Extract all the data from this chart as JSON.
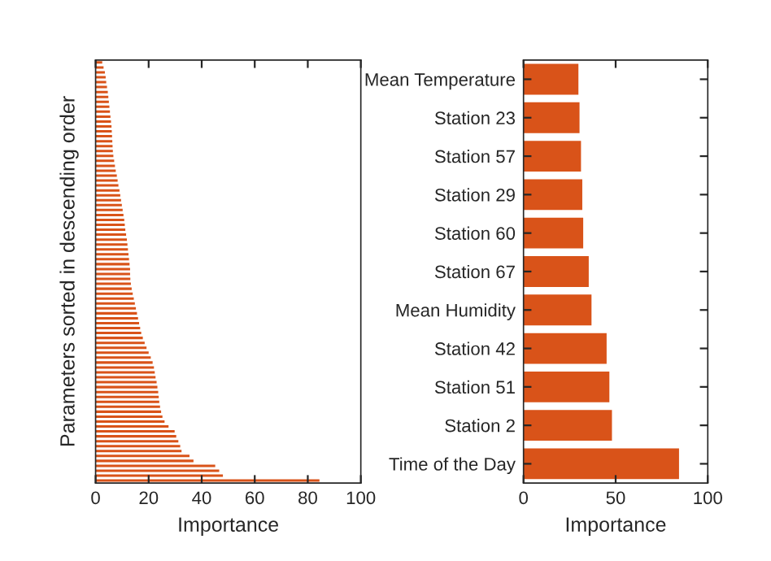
{
  "chart_data": [
    {
      "type": "bar",
      "orientation": "horizontal",
      "ylabel": "Parameters sorted in descending order",
      "xlabel": "Importance",
      "color": "#d95319",
      "tick_labels": "x",
      "grid": false,
      "categories": [
        null,
        null,
        null,
        null,
        null,
        null,
        null,
        null,
        null,
        null,
        null,
        null,
        null,
        null,
        null,
        null,
        null,
        null,
        null,
        null,
        null,
        null,
        null,
        null,
        null,
        null,
        null,
        null,
        null,
        null,
        null,
        null,
        null,
        null,
        null,
        null,
        null,
        null,
        null,
        null,
        null,
        null,
        null,
        null,
        null,
        null,
        null,
        null,
        null,
        null,
        null,
        null,
        null,
        null,
        null,
        null,
        null,
        null,
        null,
        null,
        null,
        null,
        null,
        null,
        null,
        null,
        null,
        null,
        null,
        null,
        null,
        null,
        null,
        null,
        null,
        null,
        null,
        null,
        null,
        null,
        null,
        null,
        null,
        null,
        null,
        null
      ],
      "values": [
        2.5,
        3,
        3.5,
        3.8,
        4,
        4.3,
        4.6,
        4.8,
        5,
        5.2,
        5.4,
        5.6,
        5.8,
        6,
        6.1,
        6.2,
        6.3,
        6.4,
        6.5,
        6.7,
        7,
        7.3,
        7.6,
        8,
        8.3,
        8.6,
        9,
        9.3,
        9.6,
        9.9,
        10.2,
        10.5,
        10.8,
        11,
        11.2,
        11.5,
        11.8,
        12,
        12.2,
        12.4,
        12.6,
        12.8,
        13,
        13,
        13.1,
        13.3,
        13.6,
        14,
        14.4,
        14.8,
        15.2,
        15.6,
        16,
        16.4,
        16.8,
        17.2,
        17.8,
        18.5,
        19.2,
        20,
        20.8,
        21.5,
        22,
        22.3,
        22.6,
        23,
        23.3,
        23.6,
        23.8,
        24,
        24.3,
        24.7,
        25.2,
        26,
        27.5,
        29.8,
        30.4,
        31.2,
        31.9,
        32.4,
        35.4,
        36.9,
        45.1,
        46.6,
        48,
        84.4
      ],
      "xlim": [
        0,
        100
      ],
      "xticks": [
        0,
        20,
        40,
        60,
        80,
        100
      ]
    },
    {
      "type": "bar",
      "orientation": "horizontal",
      "xlabel": "Importance",
      "color": "#d95319",
      "grid": false,
      "categories": [
        "Mean Temperature",
        "Station 23",
        "Station 57",
        "Station 29",
        "Station 60",
        "Station 67",
        "Mean Humidity",
        "Station 42",
        "Station 51",
        "Station 2",
        "Time of the Day"
      ],
      "values": [
        29.8,
        30.4,
        31.2,
        31.9,
        32.4,
        35.4,
        36.9,
        45.1,
        46.6,
        48,
        84.4
      ],
      "xlim": [
        0,
        100
      ],
      "xticks": [
        0,
        50,
        100
      ]
    }
  ]
}
